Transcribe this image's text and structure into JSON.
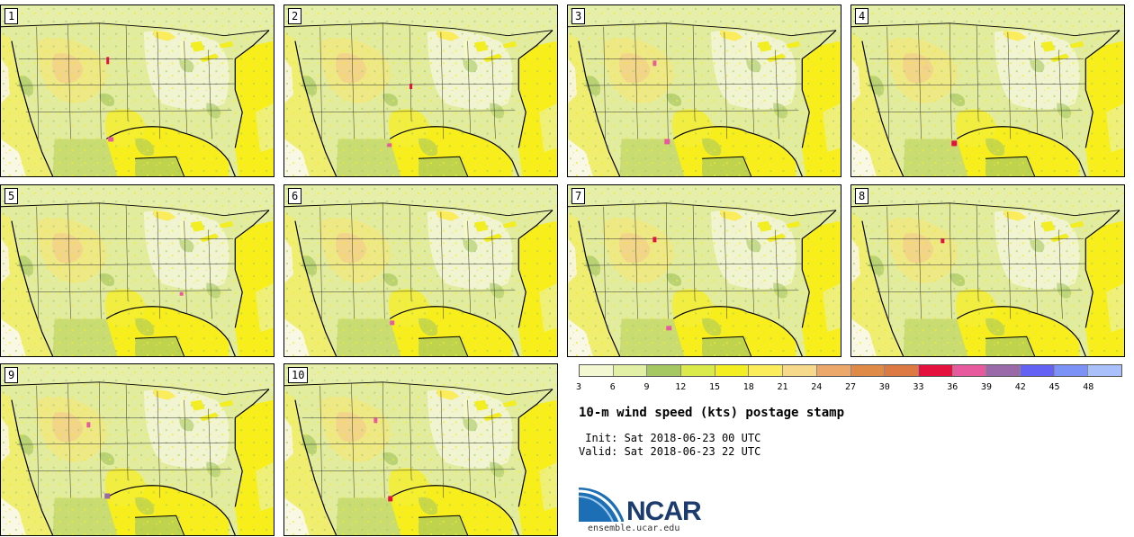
{
  "figure": {
    "title": "10-m wind speed (kts) postage stamp",
    "init_line": " Init: Sat 2018-06-23 00 UTC",
    "valid_line": "Valid: Sat 2018-06-23 22 UTC",
    "logo_text": "NCAR",
    "website": "ensemble.ucar.edu"
  },
  "members": [
    "1",
    "2",
    "3",
    "4",
    "5",
    "6",
    "7",
    "8",
    "9",
    "10"
  ],
  "colorbar": {
    "units": "kts",
    "ticks": [
      "3",
      "6",
      "9",
      "12",
      "15",
      "18",
      "21",
      "24",
      "27",
      "30",
      "33",
      "36",
      "39",
      "42",
      "45",
      "48"
    ],
    "colors": [
      "#f4f8d2",
      "#e2f0a6",
      "#a6c862",
      "#d9ea4a",
      "#f2ee22",
      "#fbec5c",
      "#f6d98a",
      "#eba86a",
      "#e08a48",
      "#dd7a44",
      "#e4103e",
      "#e85a9e",
      "#9a6aa8",
      "#6462f2",
      "#7d92f6",
      "#a9c0fa"
    ]
  },
  "colors": {
    "land_base": "#e4eea0",
    "ocean_base": "#f6f1a0"
  }
}
